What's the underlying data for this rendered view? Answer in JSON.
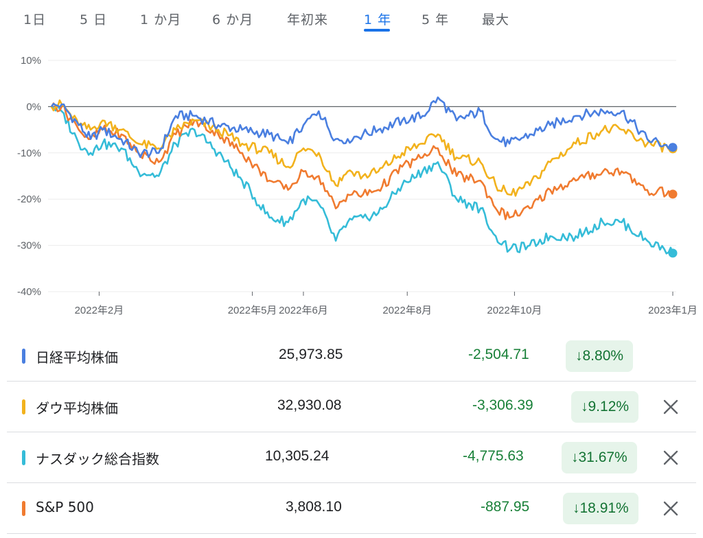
{
  "tabs": [
    {
      "label": "1日",
      "active": false
    },
    {
      "label": "5 日",
      "active": false
    },
    {
      "label": "1 か月",
      "active": false
    },
    {
      "label": "6 か月",
      "active": false
    },
    {
      "label": "年初来",
      "active": false
    },
    {
      "label": "1 年",
      "active": true
    },
    {
      "label": "5 年",
      "active": false
    },
    {
      "label": "最大",
      "active": false
    }
  ],
  "chart_data": {
    "type": "line",
    "title": "",
    "xlabel": "",
    "ylabel": "",
    "ylim": [
      -40,
      10
    ],
    "y_unit": "%",
    "yticks": [
      "10%",
      "0%",
      "-10%",
      "-20%",
      "-30%",
      "-40%"
    ],
    "xticks": [
      "2022年2月",
      "2022年5月",
      "2022年6月",
      "2022年8月",
      "2022年10月",
      "2023年1月"
    ],
    "x_range": [
      "2022-01-04",
      "2023-01-04"
    ],
    "grid": true,
    "legend": "none",
    "series": [
      {
        "name": "日経平均株価",
        "color": "#4a7fe0",
        "points": [
          [
            "2022-01-04",
            0
          ],
          [
            "2022-01-10",
            0.5
          ],
          [
            "2022-01-20",
            -4
          ],
          [
            "2022-01-27",
            -7
          ],
          [
            "2022-02-03",
            -5
          ],
          [
            "2022-02-14",
            -7
          ],
          [
            "2022-02-24",
            -10
          ],
          [
            "2022-03-08",
            -10
          ],
          [
            "2022-03-18",
            -2
          ],
          [
            "2022-03-29",
            -2
          ],
          [
            "2022-04-12",
            -4
          ],
          [
            "2022-04-26",
            -5
          ],
          [
            "2022-05-12",
            -6
          ],
          [
            "2022-05-23",
            -8
          ],
          [
            "2022-06-01",
            -4
          ],
          [
            "2022-06-10",
            -1
          ],
          [
            "2022-06-20",
            -7
          ],
          [
            "2022-06-27",
            -7
          ],
          [
            "2022-07-06",
            -6
          ],
          [
            "2022-07-15",
            -5
          ],
          [
            "2022-07-29",
            -3
          ],
          [
            "2022-08-10",
            -2
          ],
          [
            "2022-08-19",
            2
          ],
          [
            "2022-08-30",
            -3
          ],
          [
            "2022-09-13",
            -1
          ],
          [
            "2022-09-22",
            -7
          ],
          [
            "2022-09-30",
            -8
          ],
          [
            "2022-10-12",
            -6
          ],
          [
            "2022-10-24",
            -4
          ],
          [
            "2022-11-08",
            -2
          ],
          [
            "2022-11-24",
            -1
          ],
          [
            "2022-12-05",
            -1
          ],
          [
            "2022-12-20",
            -7
          ],
          [
            "2023-01-04",
            -8.8
          ]
        ]
      },
      {
        "name": "ダウ平均株価",
        "color": "#f2b21d",
        "points": [
          [
            "2022-01-04",
            0
          ],
          [
            "2022-01-10",
            0.5
          ],
          [
            "2022-01-20",
            -4
          ],
          [
            "2022-01-27",
            -5
          ],
          [
            "2022-02-03",
            -3
          ],
          [
            "2022-02-14",
            -5
          ],
          [
            "2022-02-24",
            -8
          ],
          [
            "2022-03-08",
            -9
          ],
          [
            "2022-03-18",
            -5
          ],
          [
            "2022-03-29",
            -3
          ],
          [
            "2022-04-12",
            -5
          ],
          [
            "2022-04-26",
            -8
          ],
          [
            "2022-05-12",
            -10
          ],
          [
            "2022-05-23",
            -13
          ],
          [
            "2022-06-01",
            -9
          ],
          [
            "2022-06-10",
            -10
          ],
          [
            "2022-06-20",
            -17
          ],
          [
            "2022-06-27",
            -14
          ],
          [
            "2022-07-06",
            -15
          ],
          [
            "2022-07-15",
            -14
          ],
          [
            "2022-07-29",
            -10
          ],
          [
            "2022-08-10",
            -8
          ],
          [
            "2022-08-19",
            -6
          ],
          [
            "2022-08-30",
            -11
          ],
          [
            "2022-09-13",
            -12
          ],
          [
            "2022-09-22",
            -17
          ],
          [
            "2022-09-30",
            -19
          ],
          [
            "2022-10-12",
            -17
          ],
          [
            "2022-10-24",
            -12
          ],
          [
            "2022-11-08",
            -8
          ],
          [
            "2022-11-24",
            -5
          ],
          [
            "2022-12-05",
            -5
          ],
          [
            "2022-12-20",
            -8
          ],
          [
            "2023-01-04",
            -9.12
          ]
        ]
      },
      {
        "name": "ナスダック総合指数",
        "color": "#35bcd8",
        "points": [
          [
            "2022-01-04",
            0
          ],
          [
            "2022-01-10",
            -1
          ],
          [
            "2022-01-20",
            -8
          ],
          [
            "2022-01-27",
            -10
          ],
          [
            "2022-02-03",
            -8
          ],
          [
            "2022-02-14",
            -9
          ],
          [
            "2022-02-24",
            -14
          ],
          [
            "2022-03-08",
            -15
          ],
          [
            "2022-03-18",
            -8
          ],
          [
            "2022-03-29",
            -5
          ],
          [
            "2022-04-12",
            -10
          ],
          [
            "2022-04-26",
            -16
          ],
          [
            "2022-05-12",
            -24
          ],
          [
            "2022-05-23",
            -25
          ],
          [
            "2022-06-01",
            -20
          ],
          [
            "2022-06-10",
            -21
          ],
          [
            "2022-06-20",
            -29
          ],
          [
            "2022-06-27",
            -25
          ],
          [
            "2022-07-06",
            -24
          ],
          [
            "2022-07-15",
            -23
          ],
          [
            "2022-07-29",
            -17
          ],
          [
            "2022-08-10",
            -14
          ],
          [
            "2022-08-19",
            -12
          ],
          [
            "2022-08-30",
            -20
          ],
          [
            "2022-09-13",
            -22
          ],
          [
            "2022-09-22",
            -28
          ],
          [
            "2022-09-30",
            -31
          ],
          [
            "2022-10-12",
            -30
          ],
          [
            "2022-10-24",
            -28
          ],
          [
            "2022-11-08",
            -28
          ],
          [
            "2022-11-24",
            -25
          ],
          [
            "2022-12-05",
            -25
          ],
          [
            "2022-12-20",
            -29
          ],
          [
            "2023-01-04",
            -31.67
          ]
        ]
      },
      {
        "name": "S&P 500",
        "color": "#f07b30",
        "points": [
          [
            "2022-01-04",
            0
          ],
          [
            "2022-01-10",
            0
          ],
          [
            "2022-01-20",
            -5
          ],
          [
            "2022-01-27",
            -7
          ],
          [
            "2022-02-03",
            -5
          ],
          [
            "2022-02-14",
            -6
          ],
          [
            "2022-02-24",
            -10
          ],
          [
            "2022-03-08",
            -12
          ],
          [
            "2022-03-18",
            -6
          ],
          [
            "2022-03-29",
            -3
          ],
          [
            "2022-04-12",
            -6
          ],
          [
            "2022-04-26",
            -10
          ],
          [
            "2022-05-12",
            -16
          ],
          [
            "2022-05-23",
            -18
          ],
          [
            "2022-06-01",
            -14
          ],
          [
            "2022-06-10",
            -15
          ],
          [
            "2022-06-20",
            -22
          ],
          [
            "2022-06-27",
            -19
          ],
          [
            "2022-07-06",
            -19
          ],
          [
            "2022-07-15",
            -18
          ],
          [
            "2022-07-29",
            -13
          ],
          [
            "2022-08-10",
            -11
          ],
          [
            "2022-08-19",
            -9
          ],
          [
            "2022-08-30",
            -15
          ],
          [
            "2022-09-13",
            -16
          ],
          [
            "2022-09-22",
            -22
          ],
          [
            "2022-09-30",
            -24
          ],
          [
            "2022-10-12",
            -22
          ],
          [
            "2022-10-24",
            -18
          ],
          [
            "2022-11-08",
            -16
          ],
          [
            "2022-11-24",
            -14
          ],
          [
            "2022-12-05",
            -14
          ],
          [
            "2022-12-20",
            -18
          ],
          [
            "2023-01-04",
            -18.91
          ]
        ]
      }
    ]
  },
  "indices": [
    {
      "name": "日経平均株価",
      "color": "#4a7fe0",
      "price": "25,973.85",
      "change": "-2,504.71",
      "pct": "↓8.80%",
      "removable": false
    },
    {
      "name": "ダウ平均株価",
      "color": "#f2b21d",
      "price": "32,930.08",
      "change": "-3,306.39",
      "pct": "↓9.12%",
      "removable": true
    },
    {
      "name": "ナスダック総合指数",
      "color": "#35bcd8",
      "price": "10,305.24",
      "change": "-4,775.63",
      "pct": "↓31.67%",
      "removable": true
    },
    {
      "name": "S&P 500",
      "color": "#f07b30",
      "price": "3,808.10",
      "change": "-887.95",
      "pct": "↓18.91%",
      "removable": true
    }
  ]
}
